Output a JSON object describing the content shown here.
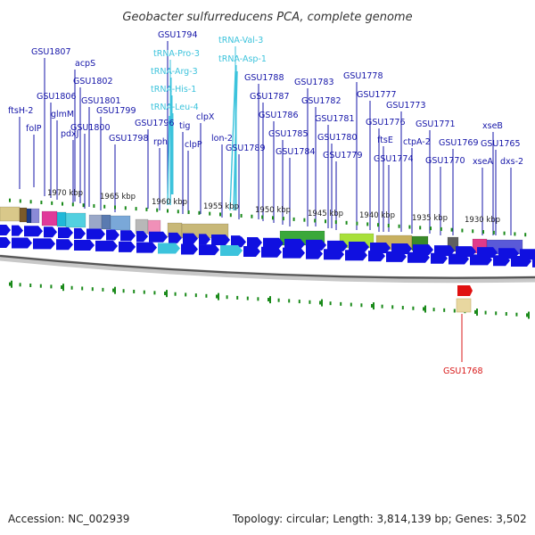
{
  "title": "Geobacter sulfurreducens PCA, complete genome",
  "footer": {
    "accession": "Accession: NC_002939",
    "summary": "Topology: circular; Length: 3,814,139 bp; Genes: 3,502"
  },
  "colors": {
    "gene_label": "#1515a8",
    "trna_label": "#3cc3dc",
    "highlight_label": "#d81818",
    "cds_arrow": "#1010e0",
    "backbone": "#555555",
    "tick": "#1a8a1a"
  },
  "scale": {
    "unit": "kbp",
    "marks": [
      {
        "label": "1970 kbp"
      },
      {
        "label": "1965 kbp"
      },
      {
        "label": "1960 kbp"
      },
      {
        "label": "1955 kbp"
      },
      {
        "label": "1950 kbp"
      },
      {
        "label": "1945 kbp"
      },
      {
        "label": "1940 kbp"
      },
      {
        "label": "1935 kbp"
      },
      {
        "label": "1930 kbp"
      }
    ]
  },
  "gene_labels": [
    {
      "name": "ftsH-2",
      "type": "cds"
    },
    {
      "name": "folP",
      "type": "cds"
    },
    {
      "name": "GSU1807",
      "type": "cds"
    },
    {
      "name": "GSU1806",
      "type": "cds"
    },
    {
      "name": "glmM",
      "type": "cds"
    },
    {
      "name": "acpS",
      "type": "cds"
    },
    {
      "name": "GSU1802",
      "type": "cds"
    },
    {
      "name": "pdxJ",
      "type": "cds"
    },
    {
      "name": "GSU1801",
      "type": "cds"
    },
    {
      "name": "GSU1800",
      "type": "cds"
    },
    {
      "name": "GSU1799",
      "type": "cds"
    },
    {
      "name": "GSU1798",
      "type": "cds"
    },
    {
      "name": "GSU1796",
      "type": "cds"
    },
    {
      "name": "rph",
      "type": "cds"
    },
    {
      "name": "GSU1794",
      "type": "cds"
    },
    {
      "name": "tRNA-Pro-3",
      "type": "trna"
    },
    {
      "name": "tRNA-Arg-3",
      "type": "trna"
    },
    {
      "name": "tRNA-His-1",
      "type": "trna"
    },
    {
      "name": "tRNA-Leu-4",
      "type": "trna"
    },
    {
      "name": "tig",
      "type": "cds"
    },
    {
      "name": "clpP",
      "type": "cds"
    },
    {
      "name": "clpX",
      "type": "cds"
    },
    {
      "name": "tRNA-Val-3",
      "type": "trna"
    },
    {
      "name": "tRNA-Asp-1",
      "type": "trna"
    },
    {
      "name": "lon-2",
      "type": "cds"
    },
    {
      "name": "GSU1789",
      "type": "cds"
    },
    {
      "name": "GSU1788",
      "type": "cds"
    },
    {
      "name": "GSU1787",
      "type": "cds"
    },
    {
      "name": "GSU1786",
      "type": "cds"
    },
    {
      "name": "GSU1785",
      "type": "cds"
    },
    {
      "name": "GSU1784",
      "type": "cds"
    },
    {
      "name": "GSU1783",
      "type": "cds"
    },
    {
      "name": "GSU1782",
      "type": "cds"
    },
    {
      "name": "GSU1781",
      "type": "cds"
    },
    {
      "name": "GSU1780",
      "type": "cds"
    },
    {
      "name": "GSU1779",
      "type": "cds"
    },
    {
      "name": "GSU1778",
      "type": "cds"
    },
    {
      "name": "GSU1777",
      "type": "cds"
    },
    {
      "name": "GSU1776",
      "type": "cds"
    },
    {
      "name": "ftsE",
      "type": "cds"
    },
    {
      "name": "GSU1774",
      "type": "cds"
    },
    {
      "name": "GSU1773",
      "type": "cds"
    },
    {
      "name": "ctpA-2",
      "type": "cds"
    },
    {
      "name": "GSU1771",
      "type": "cds"
    },
    {
      "name": "GSU1770",
      "type": "cds"
    },
    {
      "name": "GSU1769",
      "type": "cds"
    },
    {
      "name": "xseB",
      "type": "cds"
    },
    {
      "name": "GSU1765",
      "type": "cds"
    },
    {
      "name": "xseA",
      "type": "cds"
    },
    {
      "name": "dxs-2",
      "type": "cds"
    },
    {
      "name": "GSU1768",
      "type": "highlight"
    }
  ]
}
